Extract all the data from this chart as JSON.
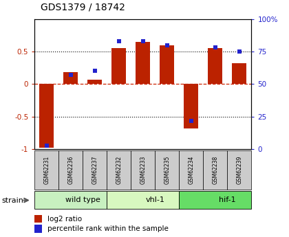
{
  "title": "GDS1379 / 18742",
  "samples": [
    "GSM62231",
    "GSM62236",
    "GSM62237",
    "GSM62232",
    "GSM62233",
    "GSM62235",
    "GSM62234",
    "GSM62238",
    "GSM62239"
  ],
  "log2_ratio": [
    -0.97,
    0.18,
    0.07,
    0.55,
    0.65,
    0.6,
    -0.68,
    0.55,
    0.32
  ],
  "percentile_rank": [
    3,
    57,
    60,
    83,
    83,
    80,
    22,
    78,
    75
  ],
  "groups": [
    {
      "label": "wild type",
      "start": 0,
      "end": 3,
      "color": "#c8f0c0"
    },
    {
      "label": "vhl-1",
      "start": 3,
      "end": 6,
      "color": "#d8f8c0"
    },
    {
      "label": "hif-1",
      "start": 6,
      "end": 9,
      "color": "#66dd66"
    }
  ],
  "ylim_left": [
    -1.0,
    1.0
  ],
  "ylim_right": [
    0,
    100
  ],
  "yticks_left": [
    -1.0,
    -0.5,
    0.0,
    0.5
  ],
  "yticks_right": [
    0,
    25,
    50,
    75,
    100
  ],
  "left_tick_labels": [
    "-1",
    "-0.5",
    "0",
    "0.5"
  ],
  "right_tick_labels": [
    "0",
    "25",
    "50",
    "75",
    "100%"
  ],
  "bar_color": "#bb2200",
  "dot_color": "#2222cc",
  "hline_color": "#cc2200",
  "bg_color": "#ffffff",
  "strain_label": "strain",
  "legend_bar_label": "log2 ratio",
  "legend_dot_label": "percentile rank within the sample",
  "sample_box_color": "#cccccc",
  "group_border_color": "#000000"
}
